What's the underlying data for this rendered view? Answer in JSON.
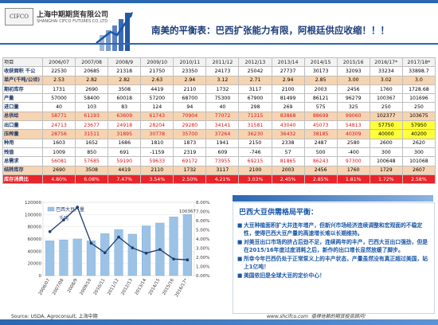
{
  "header": {
    "company_cn": "上海中期期货有限公司",
    "company_en": "SHANGHAI CIFCO FUTURES CO.,LTD",
    "logo_text": "CIFCO",
    "title": "南美的平衡表：巴西扩张能力有限，阿根廷供应收缩！！！"
  },
  "table": {
    "headers": [
      "项目",
      "2006/07",
      "2007/08",
      "2008/9",
      "2009/10",
      "2010/11",
      "2011/12",
      "2012/13",
      "2013/14",
      "2014/15",
      "2015/16",
      "2016/17*",
      "2017/18*"
    ],
    "rows": [
      {
        "label": "收获面积 千公",
        "cells": [
          "22530",
          "20685",
          "21318",
          "21750",
          "23350",
          "24173",
          "25042",
          "27737",
          "30173",
          "32093",
          "33234",
          "33898.7"
        ]
      },
      {
        "label": "单产(千吨/公顷)",
        "cells": [
          "2.53",
          "2.82",
          "2.82",
          "2.63",
          "2.94",
          "3.12",
          "2.71",
          "2.94",
          "2.85",
          "3.00",
          "3.02",
          "3.0"
        ]
      },
      {
        "label": "期初库存",
        "cells": [
          "1731",
          "2690",
          "3508",
          "4419",
          "2110",
          "1732",
          "3117",
          "2100",
          "2003",
          "2456",
          "1760",
          "1728.68"
        ]
      },
      {
        "label": "产量",
        "cells": [
          "57000",
          "58400",
          "60018",
          "57200",
          "68700",
          "75300",
          "67900",
          "81499",
          "86121",
          "96279",
          "100367",
          "101696"
        ]
      },
      {
        "label": "进口量",
        "cells": [
          "40",
          "103",
          "83",
          "124",
          "94",
          "40",
          "298",
          "269",
          "575",
          "325",
          "250",
          "250"
        ]
      },
      {
        "label": "总供给",
        "cells": [
          "58771",
          "61193",
          "63609",
          "61743",
          "70904",
          "77072",
          "71315",
          "83868",
          "88699",
          "99060",
          "102377",
          "103675"
        ]
      },
      {
        "label": "出口量",
        "cells": [
          "24713",
          "23677",
          "24918",
          "28204",
          "29280",
          "34141",
          "31581",
          "43040",
          "45073",
          "54813",
          "57750",
          "57950"
        ]
      },
      {
        "label": "压榨量",
        "cells": [
          "28756",
          "31511",
          "31895",
          "30778",
          "35700",
          "37264",
          "36230",
          "36432",
          "38185",
          "40309",
          "40000",
          "40200"
        ]
      },
      {
        "label": "种用",
        "cells": [
          "1603",
          "1652",
          "1686",
          "1810",
          "1873",
          "1941",
          "2150",
          "2338",
          "2487",
          "2580",
          "2600",
          "2620"
        ]
      },
      {
        "label": "残值",
        "cells": [
          "1009",
          "850",
          "691",
          "-1159",
          "2319",
          "609",
          "-746",
          "57",
          "500",
          "-400",
          "300",
          "300"
        ]
      },
      {
        "label": "总需求",
        "cells": [
          "56081",
          "57685",
          "59190",
          "59633",
          "69172",
          "73955",
          "69215",
          "81865",
          "86243",
          "97300",
          "100648",
          "101068"
        ]
      },
      {
        "label": "结转库存",
        "cells": [
          "2690",
          "3508",
          "4419",
          "2110",
          "1732",
          "3117",
          "2100",
          "2003",
          "2456",
          "1760",
          "1729",
          "2607"
        ]
      },
      {
        "label": "库存消费比",
        "cells": [
          "4.80%",
          "6.08%",
          "7.47%",
          "3.54%",
          "2.50%",
          "4.21%",
          "3.03%",
          "2.45%",
          "2.85%",
          "1.81%",
          "1.72%",
          "2.58%"
        ]
      }
    ]
  },
  "chart_data": {
    "type": "bar",
    "title": "",
    "legend": [
      "巴西大豆产量",
      "千吨"
    ],
    "categories": [
      "2006/07",
      "2007/08",
      "2008/9",
      "2009/10",
      "2010/11",
      "2011/12",
      "2012/13",
      "2013/14",
      "2014/15",
      "2015/16",
      "2016/17*"
    ],
    "series": [
      {
        "name": "巴西大豆产量",
        "type": "bar",
        "axis": "left",
        "values": [
          57000,
          58400,
          60018,
          57200,
          68700,
          75300,
          67900,
          81499,
          86121,
          96279,
          100367
        ]
      },
      {
        "type": "line",
        "axis": "right",
        "values": [
          4.8,
          6.08,
          7.47,
          3.54,
          2.5,
          4.21,
          3.03,
          2.45,
          2.85,
          1.81,
          1.72
        ]
      }
    ],
    "yticks_left": [
      "0",
      "20000",
      "40000",
      "60000",
      "80000",
      "100000",
      "120000"
    ],
    "yticks_right": [
      "0.00%",
      "1.00%",
      "2.00%",
      "3.00%",
      "4.00%",
      "5.00%",
      "6.00%",
      "7.00%",
      "8.00%"
    ],
    "ylim_left": [
      0,
      120000
    ],
    "ylim_right": [
      0,
      8
    ],
    "data_label": "100367",
    "colors": {
      "bar": "#9cc3e6",
      "line": "#1f3a6b"
    }
  },
  "source_note": "Source: USDA, Agroconsult, 上海中期",
  "panel": {
    "title": "巴西大豆供需格局平衡：",
    "bullets": [
      "大豆种植面积扩大并连年增产，但新兴市场经济连续调整和宏观面的不稳定性，使得巴西大豆产量的高速增长难以长期维持。",
      "对美豆出口市场的挤占后劲不足，连续两年的丰产，巴西大豆出口强劲，但是在2015/16年度过度消耗之后，新作的出口增长显然放缓了脚步。",
      "所幸今年巴西仍处于正常泵义上的丰产状态，产量虽然没有真正超过美国，站上1亿吨！",
      "美国依旧是全球大豆的定价中心！"
    ]
  },
  "footer": {
    "website": "www.shcifco.com",
    "slogan": "值得信赖的期货投资顾问!"
  }
}
